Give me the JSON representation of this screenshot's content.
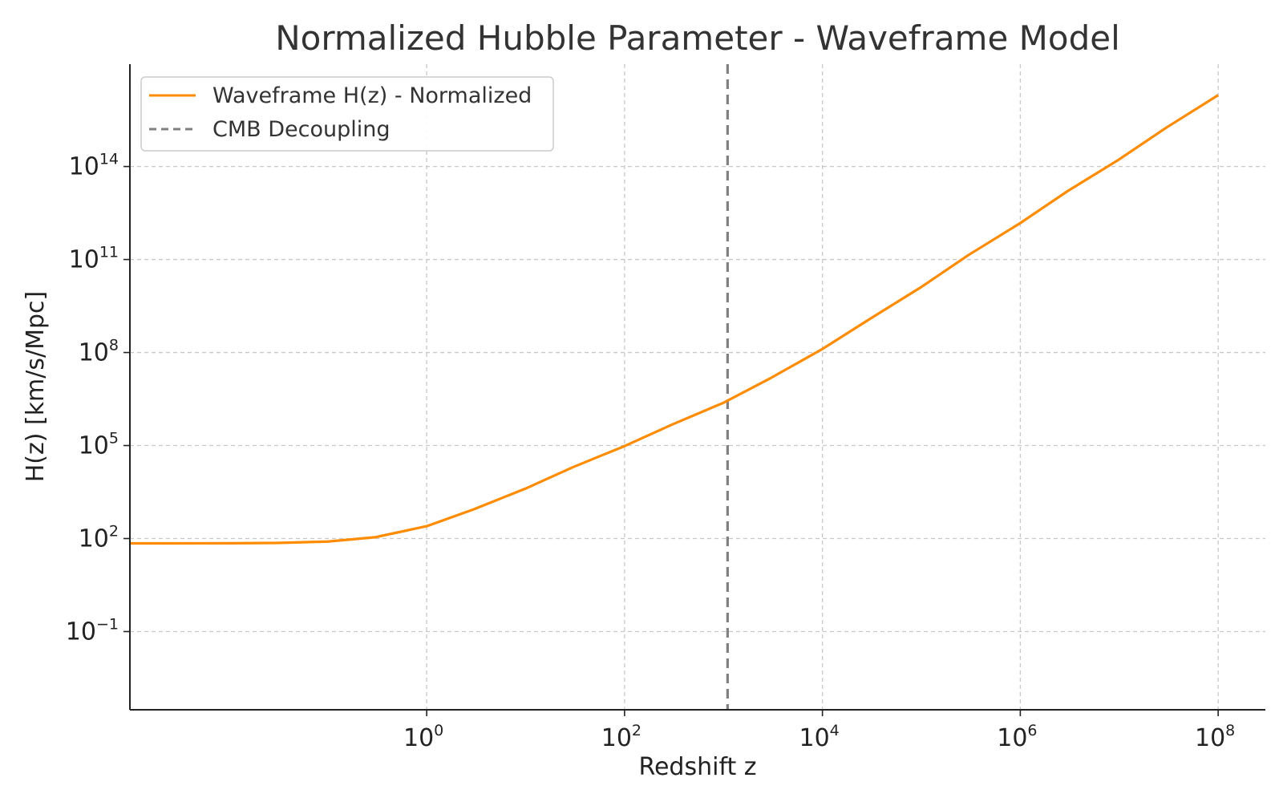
{
  "chart_data": {
    "type": "line",
    "title": "Normalized Hubble Parameter - Waveframe Model",
    "xlabel": "Redshift z",
    "ylabel": "H(z) [km/s/Mpc]",
    "xscale": "log",
    "yscale": "log",
    "xlim": [
      0.001,
      300000000
    ],
    "ylim": [
      0.0003,
      200000000000000000
    ],
    "grid": true,
    "legend_position": "top-left",
    "x_ticks": [
      {
        "value": 1,
        "base": "10",
        "exp": "0"
      },
      {
        "value": 100,
        "base": "10",
        "exp": "2"
      },
      {
        "value": 10000,
        "base": "10",
        "exp": "4"
      },
      {
        "value": 1000000,
        "base": "10",
        "exp": "6"
      },
      {
        "value": 100000000,
        "base": "10",
        "exp": "8"
      }
    ],
    "y_ticks": [
      {
        "value": 0.1,
        "base": "10",
        "exp": "−1"
      },
      {
        "value": 100,
        "base": "10",
        "exp": "2"
      },
      {
        "value": 100000,
        "base": "10",
        "exp": "5"
      },
      {
        "value": 100000000,
        "base": "10",
        "exp": "8"
      },
      {
        "value": 100000000000,
        "base": "10",
        "exp": "11"
      },
      {
        "value": 100000000000000,
        "base": "10",
        "exp": "14"
      }
    ],
    "series": [
      {
        "name": "Waveframe H(z) - Normalized",
        "color": "#ff8c00",
        "style": "solid",
        "x": [
          0.001,
          0.003,
          0.01,
          0.03,
          0.1,
          0.3,
          1,
          3,
          10,
          30,
          100,
          300,
          1000,
          3000,
          10000,
          30000,
          100000,
          300000,
          1000000,
          3000000,
          10000000,
          30000000,
          100000000
        ],
        "y": [
          70,
          70,
          70.5,
          72,
          80,
          110,
          250,
          880,
          4100,
          20000,
          96000,
          470000,
          2400000,
          15000000,
          130000000,
          1200000000,
          13000000000,
          140000000000,
          1500000000000,
          16000000000000,
          170000000000000,
          1800000000000000,
          20000000000000000
        ]
      },
      {
        "name": "CMB Decoupling",
        "color": "#808080",
        "style": "dashed",
        "x_value": 1100
      }
    ]
  }
}
